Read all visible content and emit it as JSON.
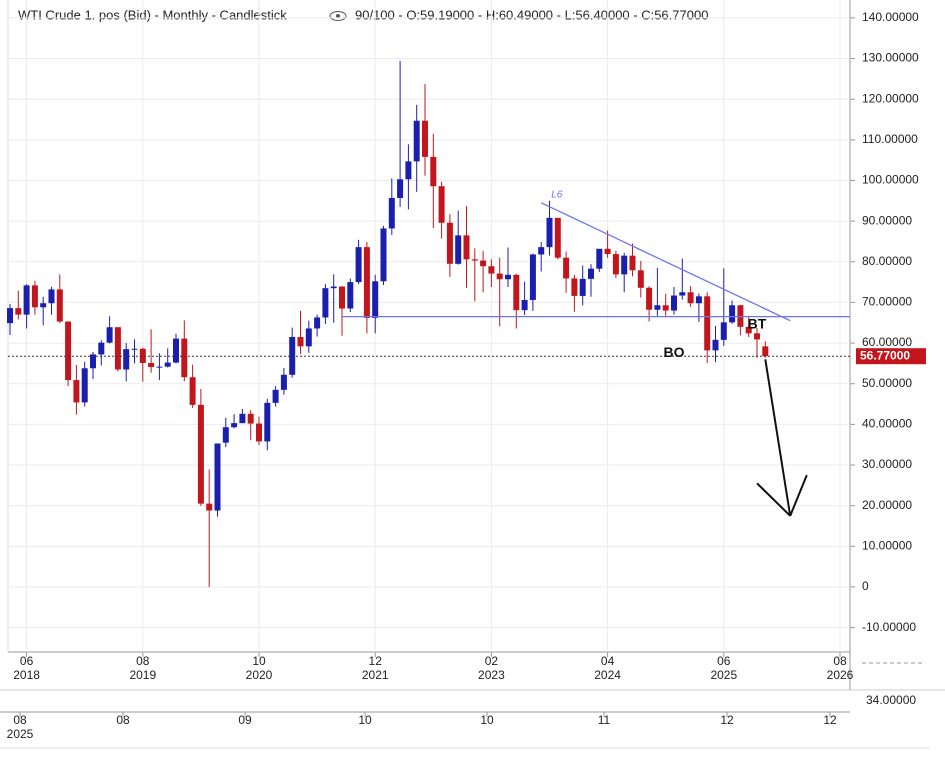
{
  "chart_data": {
    "type": "candlestick",
    "title": "WTI Crude 1. pos (Bid) - Monthly - Candlestick",
    "header_info": "90/100 - O:59.19000 - H:60.49000 - L:56.40000 - C:56.77000",
    "up_color": "#1b1fae",
    "down_color": "#c3161c",
    "grid": true,
    "x": [
      "2018-04",
      "2018-05",
      "2018-06",
      "2018-07",
      "2018-08",
      "2018-09",
      "2018-10",
      "2018-11",
      "2018-12",
      "2019-01",
      "2019-02",
      "2019-03",
      "2019-04",
      "2019-05",
      "2019-06",
      "2019-07",
      "2019-08",
      "2019-09",
      "2019-10",
      "2019-11",
      "2019-12",
      "2020-01",
      "2020-02",
      "2020-03",
      "2020-04",
      "2020-05",
      "2020-06",
      "2020-07",
      "2020-08",
      "2020-09",
      "2020-10",
      "2020-11",
      "2020-12",
      "2021-01",
      "2021-02",
      "2021-03",
      "2021-04",
      "2021-05",
      "2021-06",
      "2021-07",
      "2021-08",
      "2021-09",
      "2021-10",
      "2021-11",
      "2021-12",
      "2022-01",
      "2022-02",
      "2022-03",
      "2022-04",
      "2022-05",
      "2022-06",
      "2022-07",
      "2022-08",
      "2022-09",
      "2022-10",
      "2022-11",
      "2022-12",
      "2023-01",
      "2023-02",
      "2023-03",
      "2023-04",
      "2023-05",
      "2023-06",
      "2023-07",
      "2023-08",
      "2023-09",
      "2023-10",
      "2023-11",
      "2023-12",
      "2024-01",
      "2024-02",
      "2024-03",
      "2024-04",
      "2024-05",
      "2024-06",
      "2024-07",
      "2024-08",
      "2024-09",
      "2024-10",
      "2024-11",
      "2024-12",
      "2025-01",
      "2025-02",
      "2025-03",
      "2025-04",
      "2025-05",
      "2025-06",
      "2025-07",
      "2025-08",
      "2025-09",
      "2025-10",
      "2025-11"
    ],
    "open": [
      64.9,
      68.6,
      67.0,
      74.2,
      68.8,
      69.8,
      73.2,
      65.3,
      50.9,
      45.4,
      53.8,
      57.2,
      60.1,
      63.9,
      53.5,
      58.5,
      58.6,
      55.1,
      54.1,
      54.2,
      55.2,
      61.1,
      51.6,
      44.8,
      20.5,
      18.8,
      35.5,
      39.3,
      40.3,
      42.6,
      40.2,
      35.8,
      45.3,
      48.5,
      52.2,
      61.5,
      59.2,
      63.6,
      66.3,
      73.5,
      73.9,
      68.5,
      75.0,
      83.6,
      66.2,
      75.2,
      88.2,
      95.7,
      100.3,
      104.7,
      114.7,
      105.8,
      98.6,
      89.6,
      79.5,
      86.5,
      80.6,
      80.3,
      78.9,
      77.1,
      75.7,
      76.8,
      68.1,
      70.6,
      81.8,
      83.6,
      90.8,
      81.0,
      75.9,
      71.6,
      75.8,
      78.3,
      83.2,
      81.9,
      76.9,
      81.5,
      77.9,
      73.6,
      68.2,
      69.3,
      68.0,
      71.7,
      72.5,
      69.8,
      71.5,
      58.2,
      60.8,
      65.1,
      69.3,
      64.0,
      62.4,
      59.19
    ],
    "high": [
      69.6,
      72.9,
      74.5,
      75.3,
      71.4,
      73.9,
      76.9,
      65.3,
      54.6,
      55.4,
      57.8,
      60.7,
      66.6,
      63.9,
      60.0,
      60.9,
      58.8,
      63.4,
      57.5,
      58.7,
      62.3,
      65.6,
      54.7,
      48.7,
      28.9,
      35.3,
      41.6,
      42.5,
      43.8,
      43.5,
      41.9,
      46.3,
      49.4,
      53.9,
      63.8,
      67.9,
      65.5,
      67.0,
      74.5,
      76.9,
      74.0,
      75.9,
      85.4,
      84.9,
      76.8,
      88.8,
      100.5,
      129.4,
      108.9,
      118.6,
      123.7,
      111.5,
      99.7,
      91.7,
      92.6,
      93.7,
      83.3,
      82.7,
      80.6,
      81.0,
      83.5,
      77.0,
      75.1,
      82.0,
      84.9,
      95.0,
      90.8,
      82.5,
      76.8,
      79.1,
      79.4,
      83.1,
      87.7,
      82.7,
      82.2,
      84.5,
      80.2,
      74.0,
      78.5,
      72.1,
      73.8,
      80.8,
      74.0,
      72.2,
      72.5,
      64.2,
      78.4,
      70.5,
      69.4,
      66.4,
      63.7,
      60.49
    ],
    "low": [
      62.0,
      65.8,
      63.6,
      67.0,
      64.4,
      67.0,
      64.9,
      49.4,
      42.4,
      44.4,
      51.2,
      54.5,
      59.9,
      53.0,
      50.6,
      55.0,
      50.5,
      52.7,
      50.9,
      54.0,
      55.0,
      50.6,
      44.0,
      19.9,
      0,
      17.3,
      34.4,
      39.0,
      40.3,
      36.1,
      34.9,
      33.6,
      44.4,
      47.3,
      51.5,
      57.3,
      57.6,
      61.6,
      64.7,
      65.0,
      61.8,
      67.6,
      74.5,
      62.4,
      62.4,
      74.3,
      86.6,
      93.5,
      92.9,
      97.2,
      101.2,
      88.3,
      85.7,
      76.3,
      79.3,
      73.6,
      70.3,
      72.5,
      73.8,
      64.1,
      73.8,
      63.6,
      66.9,
      67.9,
      77.6,
      81.5,
      80.6,
      72.4,
      67.7,
      69.3,
      71.4,
      77.5,
      81.0,
      76.0,
      72.5,
      76.4,
      71.2,
      65.3,
      66.7,
      66.7,
      67.0,
      70.7,
      68.9,
      65.2,
      55.1,
      55.3,
      59.3,
      64.7,
      61.9,
      61.5,
      56.4,
      56.4
    ],
    "close": [
      68.6,
      67.0,
      74.2,
      68.8,
      69.8,
      73.2,
      65.3,
      50.9,
      45.4,
      53.8,
      57.2,
      60.1,
      63.9,
      53.5,
      58.5,
      58.6,
      55.1,
      54.1,
      54.2,
      55.2,
      61.1,
      51.6,
      44.8,
      20.5,
      18.8,
      35.3,
      39.3,
      40.3,
      42.6,
      40.2,
      35.8,
      45.3,
      48.5,
      52.2,
      61.5,
      59.2,
      63.6,
      66.3,
      73.5,
      73.9,
      68.5,
      75.0,
      83.6,
      66.2,
      75.2,
      88.2,
      95.7,
      100.3,
      104.7,
      114.7,
      105.8,
      98.6,
      89.6,
      79.5,
      86.5,
      80.6,
      80.3,
      78.9,
      77.1,
      75.7,
      76.8,
      68.1,
      70.6,
      81.8,
      83.6,
      90.8,
      81.0,
      75.9,
      71.6,
      75.8,
      78.3,
      83.2,
      81.9,
      76.9,
      81.5,
      77.9,
      73.6,
      68.2,
      69.3,
      68.0,
      71.7,
      72.5,
      69.8,
      71.5,
      58.2,
      60.8,
      65.1,
      69.3,
      64.0,
      62.4,
      60.9,
      56.77
    ],
    "ylim": [
      -16,
      144.4
    ],
    "yticks": [
      {
        "value": 140,
        "label": "140.00000"
      },
      {
        "value": 130,
        "label": "130.00000"
      },
      {
        "value": 120,
        "label": "120.00000"
      },
      {
        "value": 110,
        "label": "110.00000"
      },
      {
        "value": 100,
        "label": "100.00000"
      },
      {
        "value": 90,
        "label": "90.00000"
      },
      {
        "value": 80,
        "label": "80.00000"
      },
      {
        "value": 70,
        "label": "70.00000"
      },
      {
        "value": 60,
        "label": "60.00000"
      },
      {
        "value": 50,
        "label": "50.00000"
      },
      {
        "value": 40,
        "label": "40.00000"
      },
      {
        "value": 30,
        "label": "30.00000"
      },
      {
        "value": 20,
        "label": "20.00000"
      },
      {
        "value": 10,
        "label": "10.00000"
      },
      0,
      {
        "value": -10,
        "label": "-10.00000"
      }
    ],
    "xticks": [
      {
        "value": "2018-06",
        "label": "06",
        "year": "2018"
      },
      {
        "value": "2019-08",
        "label": "08",
        "year": "2019"
      },
      {
        "value": "2020-10",
        "label": "10",
        "year": "2020"
      },
      {
        "value": "2021-12",
        "label": "12",
        "year": "2021"
      },
      {
        "value": "2023-02",
        "label": "02",
        "year": "2023"
      },
      {
        "value": "2024-04",
        "label": "04",
        "year": "2024"
      },
      {
        "value": "2025-06",
        "label": "06",
        "year": "2025"
      },
      {
        "value": "2026-08",
        "label": "08",
        "year": "2026"
      }
    ],
    "last_price_label": "56.77000",
    "trendline": {
      "label": "L6",
      "start": {
        "x": "2023-08",
        "y": 94.5
      },
      "end": {
        "x": "2026-02",
        "y": 65.5
      }
    },
    "support": {
      "start_x": "2021-08",
      "y": 66.5
    },
    "arrow": {
      "start": {
        "x": "2025-11",
        "y": 56.0
      },
      "end": {
        "x": "2026-02",
        "y": 17.5
      },
      "head_left": {
        "x": "2025-10",
        "y": 25.5
      },
      "head_right": {
        "x": "2026-04",
        "y": 27.5
      }
    },
    "annotations": [
      {
        "text": "BO",
        "x": "2024-12",
        "y": 57.5
      },
      {
        "text": "BT",
        "x": "2025-10",
        "y": 64.5
      }
    ],
    "navigator": {
      "value_label": "34.00000",
      "ticks": [
        {
          "label": "08",
          "year": "2025"
        },
        {
          "label": "08"
        },
        {
          "label": "09"
        },
        {
          "label": "10"
        },
        {
          "label": "10"
        },
        {
          "label": "11"
        },
        {
          "label": "12"
        },
        {
          "label": "12"
        }
      ]
    }
  }
}
